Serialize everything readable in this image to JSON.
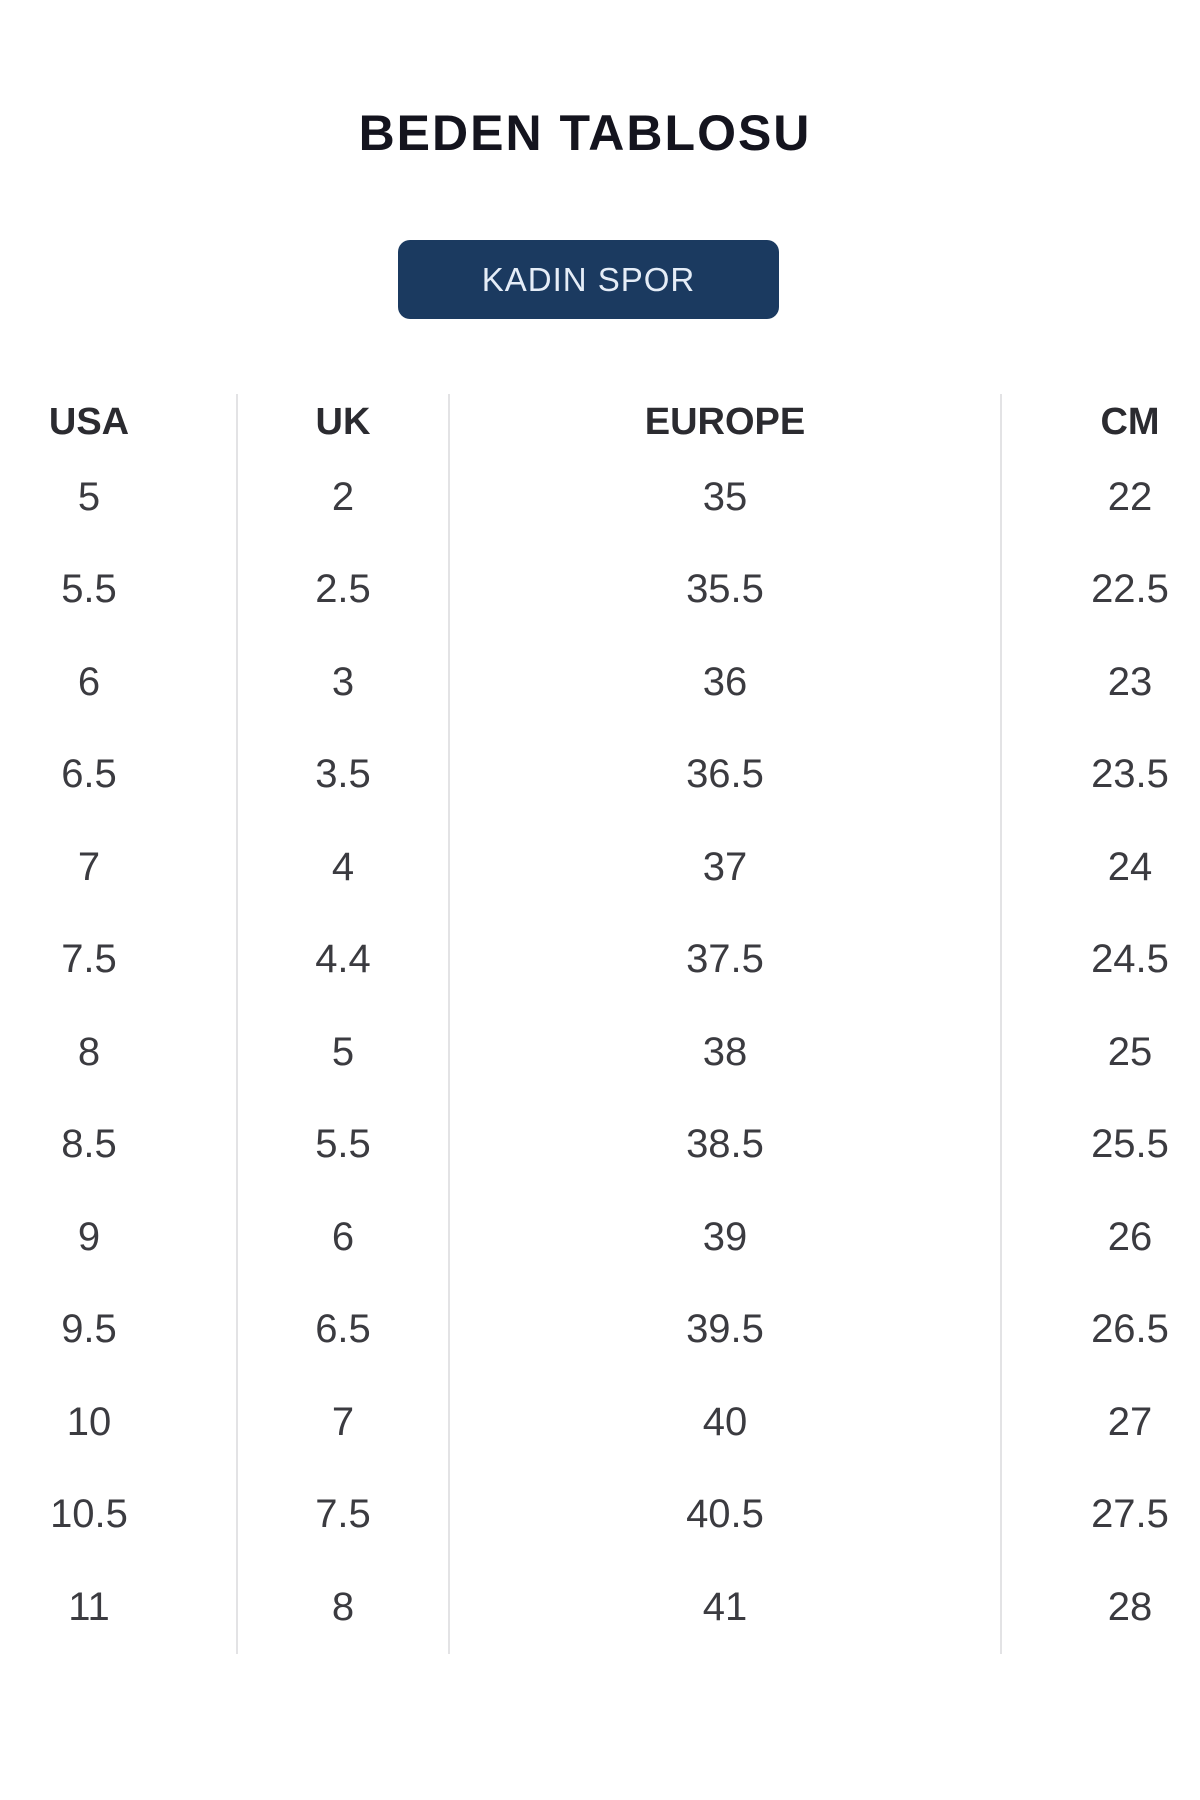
{
  "page": {
    "title": "BEDEN TABLOSU"
  },
  "category_button": {
    "label": "KADIN SPOR",
    "bg_color": "#1b3a60",
    "text_color": "#e5edf7"
  },
  "size_table": {
    "headers": [
      "USA",
      "UK",
      "EUROPE",
      "CM"
    ],
    "rows": [
      [
        "5",
        "2",
        "35",
        "22"
      ],
      [
        "5.5",
        "2.5",
        "35.5",
        "22.5"
      ],
      [
        "6",
        "3",
        "36",
        "23"
      ],
      [
        "6.5",
        "3.5",
        "36.5",
        "23.5"
      ],
      [
        "7",
        "4",
        "37",
        "24"
      ],
      [
        "7.5",
        "4.4",
        "37.5",
        "24.5"
      ],
      [
        "8",
        "5",
        "38",
        "25"
      ],
      [
        "8.5",
        "5.5",
        "38.5",
        "25.5"
      ],
      [
        "9",
        "6",
        "39",
        "26"
      ],
      [
        "9.5",
        "6.5",
        "39.5",
        "26.5"
      ],
      [
        "10",
        "7",
        "40",
        "27"
      ],
      [
        "10.5",
        "7.5",
        "40.5",
        "27.5"
      ],
      [
        "11",
        "8",
        "41",
        "28"
      ]
    ]
  },
  "colors": {
    "title_text": "#14141e",
    "header_text": "#2b2b30",
    "value_text": "#3b3b40",
    "divider": "#e3e3e5",
    "button_bg": "#1b3a60",
    "button_text": "#e5edf7",
    "background": "#ffffff"
  }
}
